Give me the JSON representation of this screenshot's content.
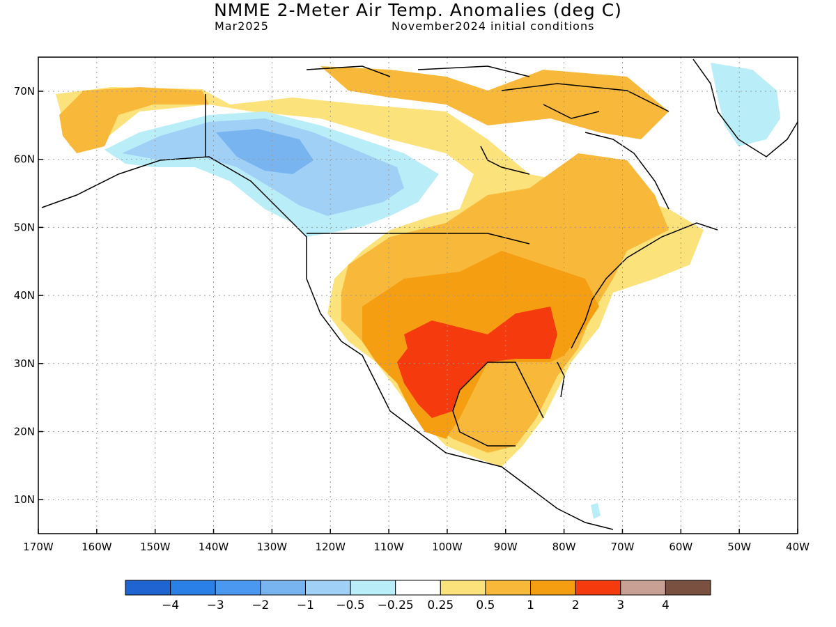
{
  "header": {
    "title": "NMME 2-Meter Air Temp. Anomalies (deg C)",
    "valid_month": "Mar2025",
    "initial_conditions": "November2024 initial conditions"
  },
  "axes": {
    "latitude_labels": [
      "70N",
      "60N",
      "50N",
      "40N",
      "30N",
      "20N",
      "10N"
    ],
    "longitude_labels": [
      "170W",
      "160W",
      "150W",
      "140W",
      "130W",
      "120W",
      "110W",
      "100W",
      "90W",
      "80W",
      "70W",
      "60W",
      "50W",
      "40W"
    ]
  },
  "legend": {
    "colors": [
      "#1f64d0",
      "#2b80e8",
      "#4a98f0",
      "#78b4f0",
      "#a0d0f5",
      "#b9eef8",
      "#ffffff",
      "#fce27a",
      "#f8b93a",
      "#f59e12",
      "#f53a0d",
      "#c8a094",
      "#7a5040"
    ],
    "tick_labels": [
      "−4",
      "−3",
      "−2",
      "−1",
      "−0.5",
      "−0.25",
      "0.25",
      "0.5",
      "1",
      "2",
      "3",
      "4"
    ]
  },
  "colors": {
    "warm_light": "#fce27a",
    "warm_mid": "#f8b93a",
    "warm_strong": "#f59e12",
    "warm_hot": "#f53a0d",
    "cold_light": "#b9eef8",
    "cold_mid": "#a0d0f5",
    "cold_strong": "#78b4f0"
  }
}
